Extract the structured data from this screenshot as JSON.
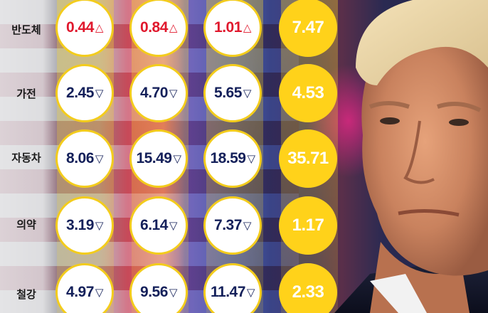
{
  "chart_data": {
    "type": "table",
    "rows": [
      {
        "label": "반도체",
        "values": [
          {
            "text": "0.44",
            "arrow": "△",
            "direction": "up"
          },
          {
            "text": "0.84",
            "arrow": "△",
            "direction": "up"
          },
          {
            "text": "1.01",
            "arrow": "△",
            "direction": "up"
          }
        ],
        "total": "7.47"
      },
      {
        "label": "가전",
        "values": [
          {
            "text": "2.45",
            "arrow": "▽",
            "direction": "down"
          },
          {
            "text": "4.70",
            "arrow": "▽",
            "direction": "down"
          },
          {
            "text": "5.65",
            "arrow": "▽",
            "direction": "down"
          }
        ],
        "total": "4.53"
      },
      {
        "label": "자동차",
        "values": [
          {
            "text": "8.06",
            "arrow": "▽",
            "direction": "down"
          },
          {
            "text": "15.49",
            "arrow": "▽",
            "direction": "down"
          },
          {
            "text": "18.59",
            "arrow": "▽",
            "direction": "down"
          }
        ],
        "total": "35.71"
      },
      {
        "label": "의약",
        "values": [
          {
            "text": "3.19",
            "arrow": "▽",
            "direction": "down"
          },
          {
            "text": "6.14",
            "arrow": "▽",
            "direction": "down"
          },
          {
            "text": "7.37",
            "arrow": "▽",
            "direction": "down"
          }
        ],
        "total": "1.17"
      },
      {
        "label": "철강",
        "values": [
          {
            "text": "4.97",
            "arrow": "▽",
            "direction": "down"
          },
          {
            "text": "9.56",
            "arrow": "▽",
            "direction": "down"
          },
          {
            "text": "11.47",
            "arrow": "▽",
            "direction": "down"
          }
        ],
        "total": "2.33"
      }
    ]
  },
  "colors": {
    "up": "#e0182d",
    "down": "#14205a",
    "circle_border": "#f3cc1c",
    "total_fill": "#ffd21a",
    "total_text": "#ffffff"
  },
  "background_image": "photo-portrait-with-flag-backdrop"
}
